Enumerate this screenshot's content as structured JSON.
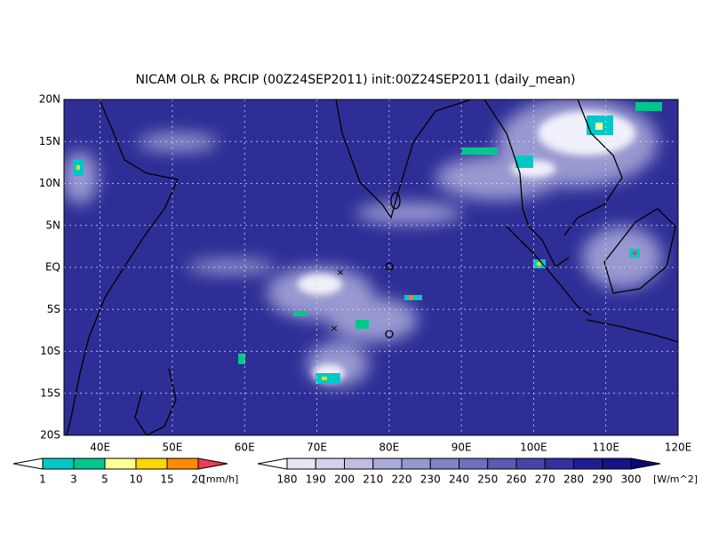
{
  "title": "NICAM OLR & PRCIP (00Z24SEP2011) init:00Z24SEP2011 (daily_mean)",
  "lat_labels": [
    "20N",
    "15N",
    "10N",
    "5N",
    "EQ",
    "5S",
    "10S",
    "15S",
    "20S"
  ],
  "lon_labels": [
    "40E",
    "50E",
    "60E",
    "70E",
    "80E",
    "90E",
    "100E",
    "110E",
    "120E"
  ],
  "precip_scale": {
    "labels": [
      "1",
      "3",
      "5",
      "10",
      "15",
      "20"
    ],
    "unit": "[mm/h]",
    "colors": [
      "#ffffff",
      "#00c8c8",
      "#00c88c",
      "#ffff96",
      "#ffd700",
      "#ff8c00",
      "#f03c50"
    ]
  },
  "olr_scale": {
    "labels": [
      "180",
      "190",
      "200",
      "210",
      "220",
      "230",
      "240",
      "250",
      "260",
      "270",
      "280",
      "290",
      "300"
    ],
    "unit": "[W/m^2]",
    "colors": [
      "#ffffff",
      "#e6e6f2",
      "#d2d2eb",
      "#bebee4",
      "#aaaadc",
      "#9696d2",
      "#8282c8",
      "#6e6ebe",
      "#5a5ab4",
      "#4646aa",
      "#3232a0",
      "#1e1e94",
      "#141488",
      "#0a0a7a"
    ]
  }
}
